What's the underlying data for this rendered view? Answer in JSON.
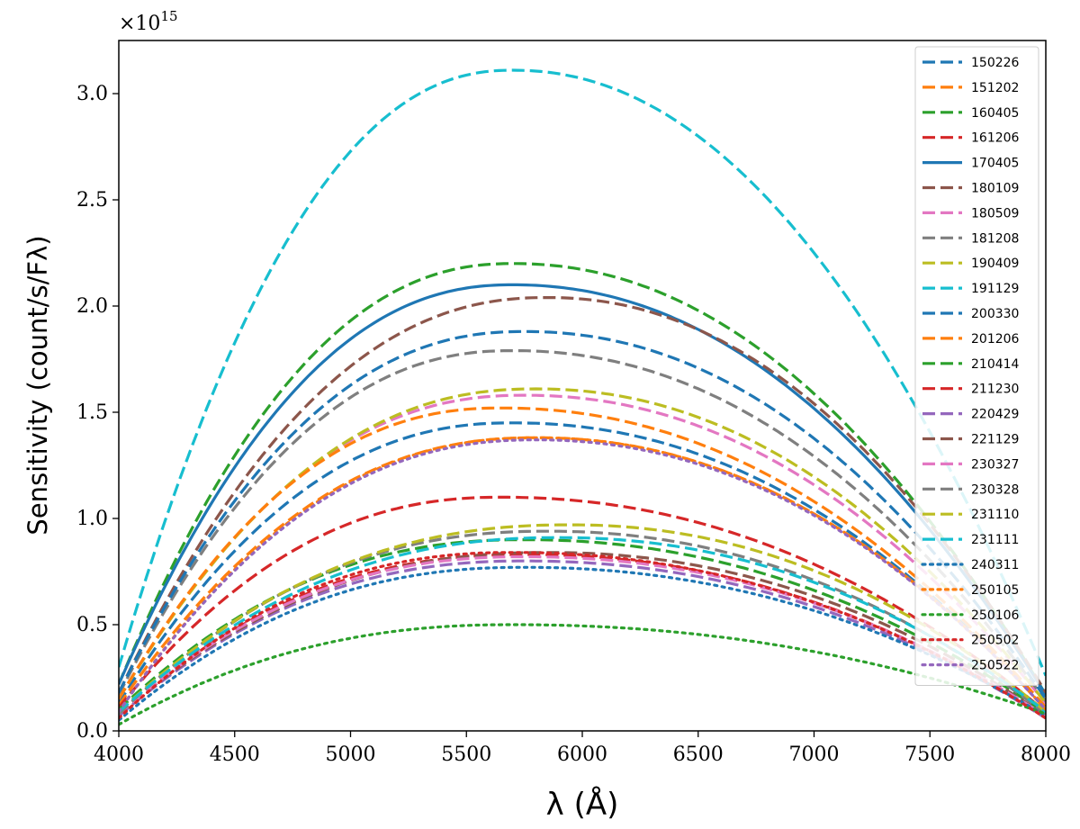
{
  "chart_data": {
    "type": "line",
    "title": "",
    "xlabel": "λ (Å)",
    "ylabel": "Sensitivity (count/s/Fλ)",
    "y_scale_note": "×10",
    "y_scale_exponent": "15",
    "xlim": [
      4000,
      8000
    ],
    "ylim": [
      0,
      3.25
    ],
    "xticks": [
      4000,
      4500,
      5000,
      5500,
      6000,
      6500,
      7000,
      7500,
      8000
    ],
    "xtick_labels": [
      "4000",
      "4500",
      "5000",
      "5500",
      "6000",
      "6500",
      "7000",
      "7500",
      "8000"
    ],
    "yticks": [
      0,
      0.5,
      1.0,
      1.5,
      2.0,
      2.5,
      3.0
    ],
    "ytick_labels": [
      "0.0",
      "0.5",
      "1.0",
      "1.5",
      "2.0",
      "2.5",
      "3.0"
    ],
    "grid": false,
    "legend_position": "top-right",
    "series": [
      {
        "name": "150226",
        "color": "#1f77b4",
        "style": "dashed",
        "peak_x": 5700,
        "peak": 1.45,
        "end4000": 0.13,
        "end8000": 0.1
      },
      {
        "name": "151202",
        "color": "#ff7f0e",
        "style": "dashed",
        "peak_x": 5800,
        "peak": 1.38,
        "end4000": 0.12,
        "end8000": 0.1
      },
      {
        "name": "160405",
        "color": "#2ca02c",
        "style": "dashed",
        "peak_x": 5700,
        "peak": 2.2,
        "end4000": 0.22,
        "end8000": 0.17
      },
      {
        "name": "161206",
        "color": "#d62728",
        "style": "dashed",
        "peak_x": 5650,
        "peak": 1.1,
        "end4000": 0.11,
        "end8000": 0.09
      },
      {
        "name": "170405",
        "color": "#1f77b4",
        "style": "solid",
        "peak_x": 5700,
        "peak": 2.1,
        "end4000": 0.22,
        "end8000": 0.17
      },
      {
        "name": "180109",
        "color": "#8c564b",
        "style": "dashed",
        "peak_x": 5850,
        "peak": 2.04,
        "end4000": 0.18,
        "end8000": 0.18
      },
      {
        "name": "180509",
        "color": "#e377c2",
        "style": "dashed",
        "peak_x": 5750,
        "peak": 1.58,
        "end4000": 0.15,
        "end8000": 0.13
      },
      {
        "name": "181208",
        "color": "#7f7f7f",
        "style": "dashed",
        "peak_x": 5700,
        "peak": 1.79,
        "end4000": 0.17,
        "end8000": 0.14
      },
      {
        "name": "190409",
        "color": "#bcbd22",
        "style": "dashed",
        "peak_x": 5800,
        "peak": 1.61,
        "end4000": 0.15,
        "end8000": 0.13
      },
      {
        "name": "191129",
        "color": "#17becf",
        "style": "dashed",
        "peak_x": 5700,
        "peak": 3.11,
        "end4000": 0.3,
        "end8000": 0.26
      },
      {
        "name": "200330",
        "color": "#1f77b4",
        "style": "dashed",
        "peak_x": 5750,
        "peak": 1.88,
        "end4000": 0.18,
        "end8000": 0.15
      },
      {
        "name": "201206",
        "color": "#ff7f0e",
        "style": "dashed",
        "peak_x": 5650,
        "peak": 1.52,
        "end4000": 0.15,
        "end8000": 0.11
      },
      {
        "name": "210414",
        "color": "#2ca02c",
        "style": "dashed",
        "peak_x": 5750,
        "peak": 0.9,
        "end4000": 0.1,
        "end8000": 0.08
      },
      {
        "name": "211230",
        "color": "#d62728",
        "style": "dashed",
        "peak_x": 5750,
        "peak": 0.83,
        "end4000": 0.08,
        "end8000": 0.06
      },
      {
        "name": "220429",
        "color": "#9467bd",
        "style": "dashed",
        "peak_x": 5750,
        "peak": 0.8,
        "end4000": 0.07,
        "end8000": 0.06
      },
      {
        "name": "221129",
        "color": "#8c564b",
        "style": "dashed",
        "peak_x": 5850,
        "peak": 0.84,
        "end4000": 0.08,
        "end8000": 0.07
      },
      {
        "name": "230327",
        "color": "#e377c2",
        "style": "dashed",
        "peak_x": 5750,
        "peak": 0.82,
        "end4000": 0.08,
        "end8000": 0.07
      },
      {
        "name": "230328",
        "color": "#7f7f7f",
        "style": "dashed",
        "peak_x": 5850,
        "peak": 0.94,
        "end4000": 0.08,
        "end8000": 0.08
      },
      {
        "name": "231110",
        "color": "#bcbd22",
        "style": "dashed",
        "peak_x": 5950,
        "peak": 0.97,
        "end4000": 0.09,
        "end8000": 0.09
      },
      {
        "name": "231111",
        "color": "#17becf",
        "style": "dashed",
        "peak_x": 5900,
        "peak": 0.91,
        "end4000": 0.09,
        "end8000": 0.09
      },
      {
        "name": "240311",
        "color": "#1f77b4",
        "style": "dotted",
        "peak_x": 5750,
        "peak": 0.77,
        "end4000": 0.05,
        "end8000": 0.07
      },
      {
        "name": "250105",
        "color": "#ff7f0e",
        "style": "dotted",
        "peak_x": 5800,
        "peak": 1.38,
        "end4000": 0.09,
        "end8000": 0.1
      },
      {
        "name": "250106",
        "color": "#2ca02c",
        "style": "dotted",
        "peak_x": 5700,
        "peak": 0.5,
        "end4000": 0.03,
        "end8000": 0.08
      },
      {
        "name": "250502",
        "color": "#d62728",
        "style": "dotted",
        "peak_x": 5700,
        "peak": 0.84,
        "end4000": 0.06,
        "end8000": 0.06
      },
      {
        "name": "250522",
        "color": "#9467bd",
        "style": "dotted",
        "peak_x": 5800,
        "peak": 1.37,
        "end4000": 0.09,
        "end8000": 0.1
      }
    ]
  }
}
